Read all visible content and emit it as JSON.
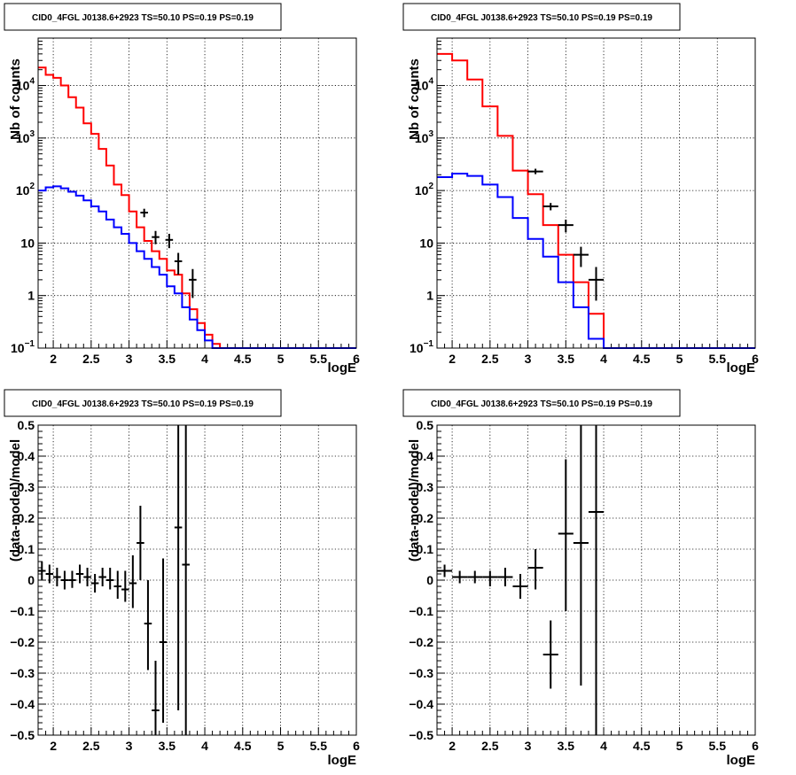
{
  "chart_data": [
    {
      "type": "line",
      "scale": "log",
      "title": "CID0_4FGL J0138.6+2923 TS=50.10 PS=0.19 PS=0.19",
      "xlabel": "logE",
      "ylabel": "Nb of counts",
      "xlim": [
        1.8,
        6.0
      ],
      "ylim": [
        0.1,
        80000
      ],
      "grid": true,
      "xticks": [
        "2",
        "2.5",
        "3",
        "3.5",
        "4",
        "4.5",
        "5",
        "5.5",
        "6"
      ],
      "yticks": [
        {
          "value": 0.1,
          "base": "10",
          "exp": "−1",
          "label": ""
        },
        {
          "value": 1,
          "base": "",
          "exp": "",
          "label": "1"
        },
        {
          "value": 10,
          "base": "",
          "exp": "",
          "label": "10"
        },
        {
          "value": 100,
          "base": "10",
          "exp": "2",
          "label": ""
        },
        {
          "value": 1000,
          "base": "10",
          "exp": "3",
          "label": ""
        },
        {
          "value": 10000,
          "base": "10",
          "exp": "4",
          "label": ""
        }
      ],
      "bin_edges": [
        1.8,
        1.9,
        2.0,
        2.1,
        2.2,
        2.3,
        2.4,
        2.5,
        2.6,
        2.7,
        2.8,
        2.9,
        3.0,
        3.1,
        3.2,
        3.3,
        3.4,
        3.5,
        3.6,
        3.7,
        3.8,
        3.9,
        4.0,
        4.1,
        4.2,
        4.3,
        4.4,
        4.5,
        4.6,
        4.7,
        4.8,
        4.9,
        5.0,
        5.1,
        5.2,
        5.3,
        5.4,
        5.5,
        5.6,
        5.7,
        5.8,
        5.9,
        6.0
      ],
      "series": [
        {
          "color": "#ff0000",
          "values": [
            22000,
            16000,
            14000,
            10000,
            6000,
            3800,
            1900,
            1200,
            620,
            300,
            130,
            82,
            40,
            20,
            11,
            7,
            5,
            3,
            2.5,
            1.1,
            0.55,
            0.3,
            0.18,
            0.12,
            0.1,
            0.1,
            0.1,
            0.1,
            0.1,
            0.1,
            0.1,
            0.1,
            0.1,
            0.1,
            0.1,
            0.1,
            0.1,
            0.1,
            0.1,
            0.1,
            0.1,
            0.1
          ]
        },
        {
          "color": "#0000ff",
          "values": [
            100,
            115,
            120,
            110,
            95,
            80,
            65,
            50,
            40,
            28,
            20,
            15,
            10,
            7,
            5,
            3.5,
            2.5,
            1.5,
            1.1,
            0.6,
            0.35,
            0.22,
            0.14,
            0.1,
            0.1,
            0.1,
            0.1,
            0.1,
            0.1,
            0.1,
            0.1,
            0.1,
            0.1,
            0.1,
            0.1,
            0.1,
            0.1,
            0.1,
            0.1,
            0.1,
            0.1,
            0.1
          ]
        }
      ],
      "points": [
        {
          "x": 3.2,
          "y": 38,
          "xerr": 0.05,
          "ylo": 31,
          "yhi": 45
        },
        {
          "x": 3.35,
          "y": 13,
          "xerr": 0.05,
          "ylo": 9.5,
          "yhi": 17
        },
        {
          "x": 3.53,
          "y": 11.5,
          "xerr": 0.05,
          "ylo": 8,
          "yhi": 15
        },
        {
          "x": 3.65,
          "y": 4.5,
          "xerr": 0.05,
          "ylo": 2.5,
          "yhi": 6.5
        },
        {
          "x": 3.84,
          "y": 2,
          "xerr": 0.05,
          "ylo": 0.9,
          "yhi": 3.2
        }
      ]
    },
    {
      "type": "line",
      "scale": "log",
      "title": "CID0_4FGL J0138.6+2923 TS=50.10 PS=0.19 PS=0.19",
      "xlabel": "logE",
      "ylabel": "Nb of counts",
      "xlim": [
        1.8,
        6.0
      ],
      "ylim": [
        0.1,
        80000
      ],
      "grid": true,
      "xticks": [
        "2",
        "2.5",
        "3",
        "3.5",
        "4",
        "4.5",
        "5",
        "5.5",
        "6"
      ],
      "yticks": [
        {
          "value": 0.1,
          "base": "10",
          "exp": "−1",
          "label": ""
        },
        {
          "value": 1,
          "base": "",
          "exp": "",
          "label": "1"
        },
        {
          "value": 10,
          "base": "",
          "exp": "",
          "label": "10"
        },
        {
          "value": 100,
          "base": "10",
          "exp": "2",
          "label": ""
        },
        {
          "value": 1000,
          "base": "10",
          "exp": "3",
          "label": ""
        },
        {
          "value": 10000,
          "base": "10",
          "exp": "4",
          "label": ""
        }
      ],
      "bin_edges": [
        1.8,
        2.0,
        2.2,
        2.4,
        2.6,
        2.8,
        3.0,
        3.2,
        3.4,
        3.6,
        3.8,
        4.0,
        4.2,
        4.4,
        4.6,
        4.8,
        5.0,
        5.2,
        5.4,
        5.6,
        5.8,
        6.0
      ],
      "series": [
        {
          "color": "#ff0000",
          "values": [
            40000,
            30000,
            13000,
            4000,
            1100,
            240,
            85,
            22,
            6,
            1.8,
            0.45,
            0.1,
            0.1,
            0.1,
            0.1,
            0.1,
            0.1,
            0.1,
            0.1,
            0.1,
            0.1
          ]
        },
        {
          "color": "#0000ff",
          "values": [
            180,
            210,
            190,
            130,
            75,
            30,
            12,
            5.5,
            1.8,
            0.6,
            0.15,
            0.1,
            0.1,
            0.1,
            0.1,
            0.1,
            0.1,
            0.1,
            0.1,
            0.1,
            0.1
          ]
        }
      ],
      "points": [
        {
          "x": 3.1,
          "y": 230,
          "xerr": 0.1,
          "ylo": 205,
          "yhi": 260
        },
        {
          "x": 3.3,
          "y": 50,
          "xerr": 0.1,
          "ylo": 42,
          "yhi": 58
        },
        {
          "x": 3.5,
          "y": 22,
          "xerr": 0.1,
          "ylo": 16,
          "yhi": 28
        },
        {
          "x": 3.7,
          "y": 6,
          "xerr": 0.1,
          "ylo": 3.5,
          "yhi": 8.5
        },
        {
          "x": 3.9,
          "y": 2,
          "xerr": 0.1,
          "ylo": 0.8,
          "yhi": 3.5
        }
      ]
    },
    {
      "type": "scatter",
      "scale": "linear",
      "title": "CID0_4FGL J0138.6+2923 TS=50.10 PS=0.19 PS=0.19",
      "xlabel": "logE",
      "ylabel": "(data-model)/model",
      "xlim": [
        1.8,
        6.0
      ],
      "ylim": [
        -0.5,
        0.5
      ],
      "grid": true,
      "xticks": [
        "2",
        "2.5",
        "3",
        "3.5",
        "4",
        "4.5",
        "5",
        "5.5",
        "6"
      ],
      "yticks": [
        "−0.5",
        "−0.4",
        "−0.3",
        "−0.2",
        "−0.1",
        "0",
        "0.1",
        "0.2",
        "0.3",
        "0.4",
        "0.5"
      ],
      "points": [
        {
          "x": 1.85,
          "y": 0.03,
          "xerr": 0.05,
          "ylo": 0.0,
          "yhi": 0.06
        },
        {
          "x": 1.95,
          "y": 0.02,
          "xerr": 0.05,
          "ylo": -0.01,
          "yhi": 0.05
        },
        {
          "x": 2.05,
          "y": 0.01,
          "xerr": 0.05,
          "ylo": -0.02,
          "yhi": 0.04
        },
        {
          "x": 2.15,
          "y": 0.0,
          "xerr": 0.05,
          "ylo": -0.03,
          "yhi": 0.03
        },
        {
          "x": 2.25,
          "y": 0.0,
          "xerr": 0.05,
          "ylo": -0.025,
          "yhi": 0.03
        },
        {
          "x": 2.35,
          "y": 0.02,
          "xerr": 0.05,
          "ylo": -0.01,
          "yhi": 0.05
        },
        {
          "x": 2.45,
          "y": 0.01,
          "xerr": 0.05,
          "ylo": -0.02,
          "yhi": 0.04
        },
        {
          "x": 2.55,
          "y": -0.01,
          "xerr": 0.05,
          "ylo": -0.04,
          "yhi": 0.02
        },
        {
          "x": 2.65,
          "y": 0.01,
          "xerr": 0.05,
          "ylo": -0.02,
          "yhi": 0.04
        },
        {
          "x": 2.75,
          "y": 0.0,
          "xerr": 0.05,
          "ylo": -0.03,
          "yhi": 0.04
        },
        {
          "x": 2.85,
          "y": -0.02,
          "xerr": 0.05,
          "ylo": -0.06,
          "yhi": 0.03
        },
        {
          "x": 2.95,
          "y": -0.03,
          "xerr": 0.05,
          "ylo": -0.07,
          "yhi": 0.03
        },
        {
          "x": 3.05,
          "y": -0.01,
          "xerr": 0.05,
          "ylo": -0.09,
          "yhi": 0.08
        },
        {
          "x": 3.15,
          "y": 0.12,
          "xerr": 0.05,
          "ylo": 0.0,
          "yhi": 0.24
        },
        {
          "x": 3.25,
          "y": -0.14,
          "xerr": 0.05,
          "ylo": -0.29,
          "yhi": 0.0
        },
        {
          "x": 3.35,
          "y": -0.42,
          "xerr": 0.05,
          "ylo": -0.5,
          "yhi": -0.26
        },
        {
          "x": 3.45,
          "y": -0.2,
          "xerr": 0.05,
          "ylo": -0.46,
          "yhi": 0.07
        },
        {
          "x": 3.65,
          "y": 0.17,
          "xerr": 0.05,
          "ylo": -0.42,
          "yhi": 0.5
        },
        {
          "x": 3.75,
          "y": 0.05,
          "xerr": 0.05,
          "ylo": -0.5,
          "yhi": 0.5
        }
      ]
    },
    {
      "type": "scatter",
      "scale": "linear",
      "title": "CID0_4FGL J0138.6+2923 TS=50.10 PS=0.19 PS=0.19",
      "xlabel": "logE",
      "ylabel": "(data-model)/model",
      "xlim": [
        1.8,
        6.0
      ],
      "ylim": [
        -0.5,
        0.5
      ],
      "grid": true,
      "xticks": [
        "2",
        "2.5",
        "3",
        "3.5",
        "4",
        "4.5",
        "5",
        "5.5",
        "6"
      ],
      "yticks": [
        "−0.5",
        "−0.4",
        "−0.3",
        "−0.2",
        "−0.1",
        "0",
        "0.1",
        "0.2",
        "0.3",
        "0.4",
        "0.5"
      ],
      "points": [
        {
          "x": 1.9,
          "y": 0.03,
          "xerr": 0.1,
          "ylo": 0.01,
          "yhi": 0.05
        },
        {
          "x": 2.1,
          "y": 0.01,
          "xerr": 0.1,
          "ylo": -0.01,
          "yhi": 0.03
        },
        {
          "x": 2.3,
          "y": 0.01,
          "xerr": 0.1,
          "ylo": -0.01,
          "yhi": 0.03
        },
        {
          "x": 2.5,
          "y": 0.01,
          "xerr": 0.1,
          "ylo": -0.02,
          "yhi": 0.03
        },
        {
          "x": 2.7,
          "y": 0.01,
          "xerr": 0.1,
          "ylo": -0.02,
          "yhi": 0.04
        },
        {
          "x": 2.9,
          "y": -0.02,
          "xerr": 0.1,
          "ylo": -0.06,
          "yhi": 0.02
        },
        {
          "x": 3.1,
          "y": 0.04,
          "xerr": 0.1,
          "ylo": -0.03,
          "yhi": 0.1
        },
        {
          "x": 3.3,
          "y": -0.24,
          "xerr": 0.1,
          "ylo": -0.35,
          "yhi": -0.13
        },
        {
          "x": 3.5,
          "y": 0.15,
          "xerr": 0.1,
          "ylo": -0.1,
          "yhi": 0.39
        },
        {
          "x": 3.7,
          "y": 0.12,
          "xerr": 0.1,
          "ylo": -0.34,
          "yhi": 0.5
        },
        {
          "x": 3.9,
          "y": 0.22,
          "xerr": 0.1,
          "ylo": -0.5,
          "yhi": 0.5
        }
      ]
    }
  ]
}
